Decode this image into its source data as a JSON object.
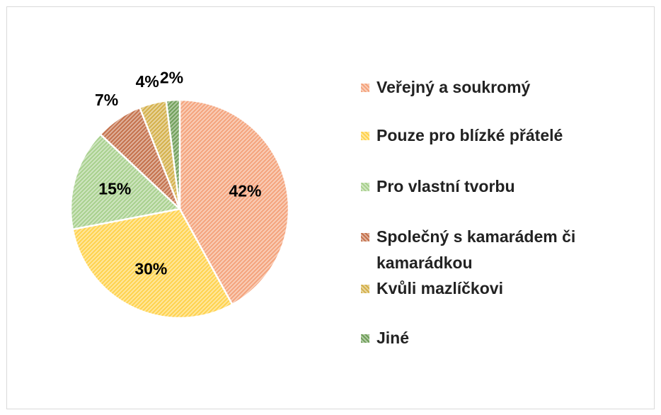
{
  "chart_data": {
    "type": "pie",
    "categories": [
      "Veřejný a soukromý",
      "Pouze pro blízké přátelé",
      "Pro vlastní tvorbu",
      "Společný s kamarádem či kamarádkou",
      "Kvůli mazlíčkovi",
      "Jiné"
    ],
    "values": [
      42,
      30,
      15,
      7,
      4,
      2
    ],
    "value_labels": [
      "42%",
      "30%",
      "15%",
      "7%",
      "4%",
      "2%"
    ],
    "colors": [
      "#f4a37c",
      "#ffd24d",
      "#a8d08d",
      "#c4714b",
      "#d4b04a",
      "#6f9e58"
    ],
    "legend": "right"
  }
}
